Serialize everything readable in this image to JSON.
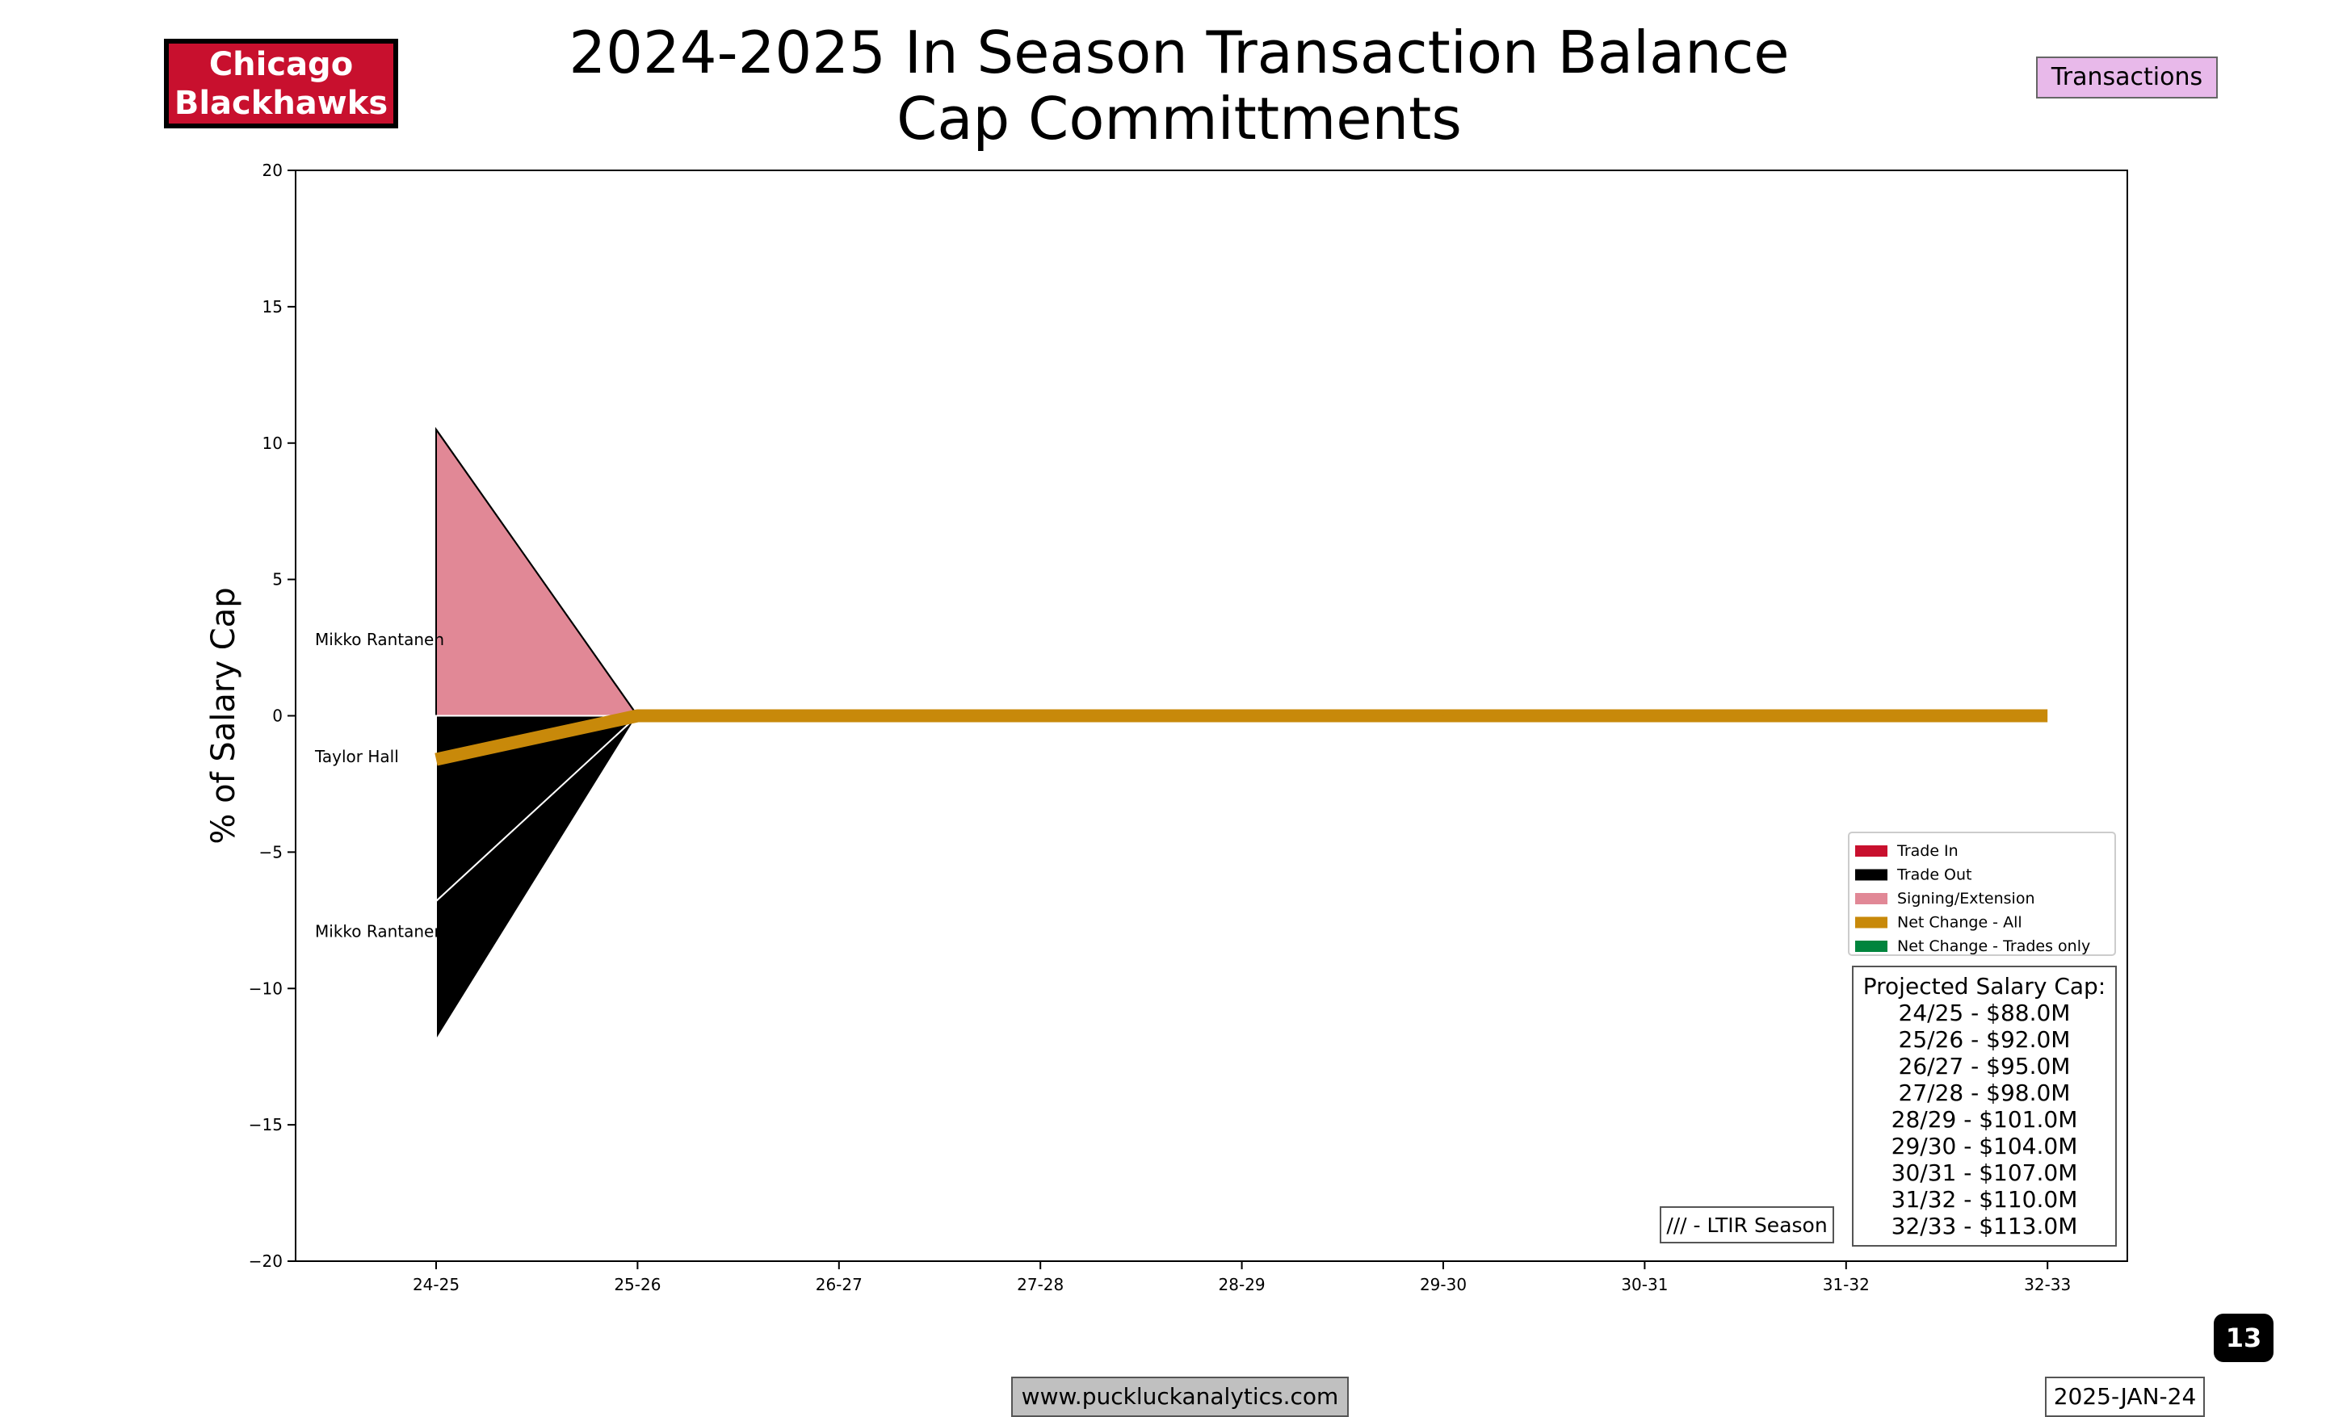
{
  "header": {
    "team_line1": "Chicago",
    "team_line2": "Blackhawks",
    "title_line1": "2024-2025 In Season Transaction Balance",
    "title_line2": "Cap Committments",
    "tag": "Transactions"
  },
  "footer": {
    "url": "www.puckluckanalytics.com",
    "date": "2025-JAN-24",
    "page": "13"
  },
  "colors": {
    "trade_in": "#c8102e",
    "trade_out": "#000000",
    "signing": "#e18896",
    "net_all": "#c8890a",
    "net_trades": "#00843d",
    "team_badge": "#c8102e",
    "tag_bg": "#e8b9ea"
  },
  "chart_data": {
    "type": "area",
    "ylabel": "% of Salary Cap",
    "ylim": [
      -20,
      20
    ],
    "yticks": [
      20,
      15,
      10,
      5,
      0,
      -5,
      -10,
      -15,
      -20
    ],
    "ytick_labels": [
      "20",
      "15",
      "10",
      "5",
      "0",
      "−5",
      "−10",
      "−15",
      "−20"
    ],
    "categories": [
      "24-25",
      "25-26",
      "26-27",
      "27-28",
      "28-29",
      "29-30",
      "30-31",
      "31-32",
      "32-33"
    ],
    "areas": [
      {
        "player": "Mikko Rantanen",
        "kind": "signing",
        "values": [
          10.5,
          0
        ]
      },
      {
        "player": "Taylor Hall",
        "kind": "trade_out",
        "values": [
          -6.8,
          0
        ],
        "base": [
          0,
          0
        ]
      },
      {
        "player": "Mikko Rantanen",
        "kind": "trade_out",
        "values": [
          -11.9,
          0
        ],
        "base": [
          -6.8,
          0
        ]
      }
    ],
    "area_labels": [
      {
        "text": "Mikko Rantanen",
        "y": 2.8
      },
      {
        "text": "Taylor Hall",
        "y": -1.5
      },
      {
        "text": "Mikko Rantanen",
        "y": -7.9
      }
    ],
    "net_change_all": [
      -1.6,
      0,
      0,
      0,
      0,
      0,
      0,
      0,
      0
    ],
    "legend": {
      "position": "lower-right",
      "entries": [
        {
          "label": "Trade In",
          "color_key": "trade_in"
        },
        {
          "label": "Trade Out",
          "color_key": "trade_out"
        },
        {
          "label": "Signing/Extension",
          "color_key": "signing"
        },
        {
          "label": "Net Change - All",
          "color_key": "net_all"
        },
        {
          "label": "Net Change - Trades only",
          "color_key": "net_trades"
        }
      ]
    },
    "cap_box": {
      "title": "Projected Salary Cap:",
      "lines": [
        "24/25 - $88.0M",
        "25/26 - $92.0M",
        "26/27 - $95.0M",
        "27/28 - $98.0M",
        "28/29 - $101.0M",
        "29/30 - $104.0M",
        "30/31 - $107.0M",
        "31/32 - $110.0M",
        "32/33 - $113.0M"
      ]
    },
    "ltir_note": "/// - LTIR Season"
  }
}
